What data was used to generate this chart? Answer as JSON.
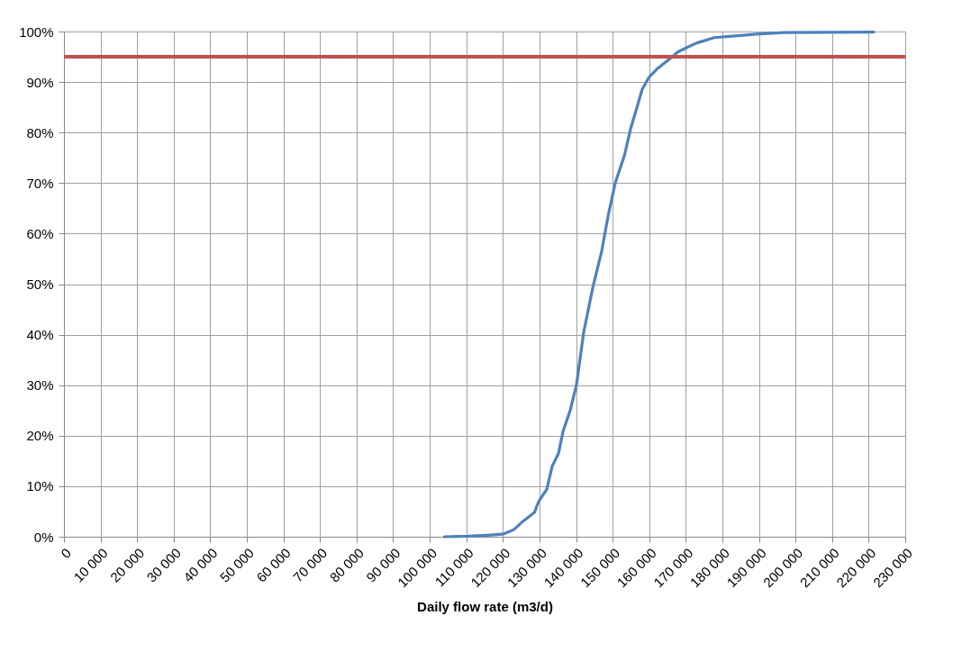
{
  "chart_data": {
    "type": "line",
    "xlabel": "Daily flow rate (m3/d)",
    "x": [
      104000,
      110600,
      115500,
      120000,
      123000,
      125400,
      128600,
      129800,
      132000,
      133500,
      135200,
      136500,
      138400,
      140100,
      142100,
      144600,
      147000,
      148800,
      150700,
      153200,
      154900,
      156900,
      158100,
      159900,
      162300,
      165500,
      167700,
      170200,
      172900,
      177800,
      182800,
      189400,
      196800,
      221400
    ],
    "series": [
      {
        "color": "#4f81bd",
        "values": [
          0,
          0.1,
          0.3,
          0.5,
          1.4,
          3,
          4.8,
          7,
          9.4,
          14,
          16.5,
          21,
          25,
          30,
          40.5,
          49.4,
          56.5,
          63.6,
          70,
          75.4,
          80.7,
          85.6,
          88.6,
          90.9,
          92.7,
          94.5,
          95.9,
          96.8,
          97.7,
          98.8,
          99.1,
          99.5,
          99.8,
          99.9
        ]
      }
    ],
    "xlim": [
      0,
      230000
    ],
    "xticks": [
      {
        "value": 0,
        "label": "0"
      },
      {
        "value": 10000,
        "label": "10 000"
      },
      {
        "value": 20000,
        "label": "20 000"
      },
      {
        "value": 30000,
        "label": "30 000"
      },
      {
        "value": 40000,
        "label": "40 000"
      },
      {
        "value": 50000,
        "label": "50 000"
      },
      {
        "value": 60000,
        "label": "60 000"
      },
      {
        "value": 70000,
        "label": "70 000"
      },
      {
        "value": 80000,
        "label": "80 000"
      },
      {
        "value": 90000,
        "label": "90 000"
      },
      {
        "value": 100000,
        "label": "100 000"
      },
      {
        "value": 110000,
        "label": "110 000"
      },
      {
        "value": 120000,
        "label": "120 000"
      },
      {
        "value": 130000,
        "label": "130 000"
      },
      {
        "value": 140000,
        "label": "140 000"
      },
      {
        "value": 150000,
        "label": "150 000"
      },
      {
        "value": 160000,
        "label": "160 000"
      },
      {
        "value": 170000,
        "label": "170 000"
      },
      {
        "value": 180000,
        "label": "180 000"
      },
      {
        "value": 190000,
        "label": "190 000"
      },
      {
        "value": 200000,
        "label": "200 000"
      },
      {
        "value": 210000,
        "label": "210 000"
      },
      {
        "value": 220000,
        "label": "220 000"
      },
      {
        "value": 230000,
        "label": "230 000"
      }
    ],
    "ylim": [
      0,
      100
    ],
    "yticks": [
      {
        "value": 0,
        "label": "0%"
      },
      {
        "value": 10,
        "label": "10%"
      },
      {
        "value": 20,
        "label": "20%"
      },
      {
        "value": 30,
        "label": "30%"
      },
      {
        "value": 40,
        "label": "40%"
      },
      {
        "value": 50,
        "label": "50%"
      },
      {
        "value": 60,
        "label": "60%"
      },
      {
        "value": 70,
        "label": "70%"
      },
      {
        "value": 80,
        "label": "80%"
      },
      {
        "value": 90,
        "label": "90%"
      },
      {
        "value": 100,
        "label": "100%"
      }
    ],
    "ref_lines": [
      {
        "axis": "y",
        "value": 95,
        "color": "#c0504d"
      }
    ],
    "grid": true,
    "marker": "none",
    "line_style": "solid"
  }
}
